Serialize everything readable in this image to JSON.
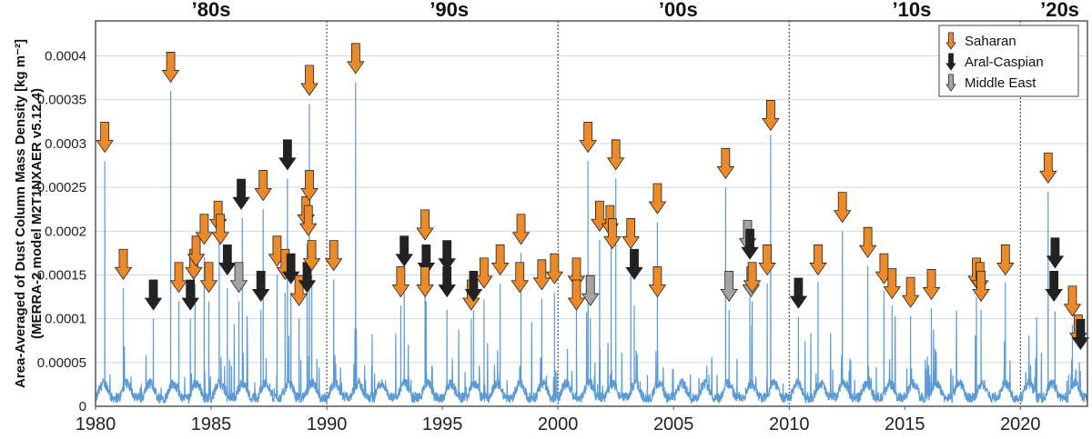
{
  "chart_data": {
    "type": "line",
    "ylabel": "Area-Averaged of Dust Column Mass Density [kg m⁻²]",
    "ylabel_line2": "(MERRA-2 model M2T1NXAER v5.12.4)",
    "xlim": [
      1980,
      2022.9
    ],
    "ylim": [
      0,
      0.00044
    ],
    "grid": "horizontal",
    "legend_placement": "top-right",
    "x_ticks": [
      "1980",
      "1985",
      "1990",
      "1995",
      "2000",
      "2005",
      "2010",
      "2015",
      "2020"
    ],
    "y_ticks": [
      "0",
      "0.00005",
      "0.0001",
      "0.00015",
      "0.0002",
      "0.00025",
      "0.0003",
      "0.00035",
      "0.0004"
    ],
    "decades": [
      {
        "label": "’80s",
        "year": 1985
      },
      {
        "label": "’90s",
        "year": 1995.3
      },
      {
        "label": "’00s",
        "year": 2005.2
      },
      {
        "label": "’10s",
        "year": 2015.3
      },
      {
        "label": "’20s",
        "year": 2021.7
      }
    ],
    "decade_dividers": [
      1990,
      2000,
      2010,
      2020
    ],
    "series_color": "#5b9bd5",
    "region_colors": {
      "Saharan": "#ec8a2a",
      "Aral-Caspian": "#222222",
      "Middle East": "#a3a3a3"
    },
    "legend": [
      {
        "label": "Saharan",
        "region": "Saharan"
      },
      {
        "label": "Aral-Caspian",
        "region": "Aral-Caspian"
      },
      {
        "label": "Middle East",
        "region": "Middle East"
      }
    ],
    "peaks": [
      [
        1980.4,
        0.00028
      ],
      [
        1981.2,
        0.000135
      ],
      [
        1982.5,
        0.0001
      ],
      [
        1983.25,
        0.00036
      ],
      [
        1983.6,
        0.00012
      ],
      [
        1984.1,
        0.0001
      ],
      [
        1984.3,
        0.00014
      ],
      [
        1984.7,
        0.00017
      ],
      [
        1984.9,
        0.00012
      ],
      [
        1985.35,
        0.00019
      ],
      [
        1985.7,
        0.000135
      ],
      [
        1986.2,
        0.00012
      ],
      [
        1986.35,
        0.000215
      ],
      [
        1987.15,
        0.00011
      ],
      [
        1987.25,
        0.000225
      ],
      [
        1987.85,
        0.00015
      ],
      [
        1988.2,
        0.00013
      ],
      [
        1988.3,
        0.00026
      ],
      [
        1988.45,
        0.00013
      ],
      [
        1988.8,
        0.0001
      ],
      [
        1989.15,
        0.000185
      ],
      [
        1989.25,
        0.000345
      ],
      [
        1989.35,
        0.00015
      ],
      [
        1990.3,
        0.000145
      ],
      [
        1991.25,
        0.00037
      ],
      [
        1993.2,
        0.000115
      ],
      [
        1993.35,
        0.00013
      ],
      [
        1994.25,
        0.00018
      ],
      [
        1994.3,
        0.00012
      ],
      [
        1995.2,
        0.00011
      ],
      [
        1996.25,
        0.0001
      ],
      [
        1996.35,
        0.00011
      ],
      [
        1996.8,
        0.000122
      ],
      [
        1997.5,
        0.00014
      ],
      [
        1998.4,
        0.000175
      ],
      [
        1999.3,
        0.000123
      ],
      [
        1999.85,
        0.00013
      ],
      [
        2000.8,
        0.00011
      ],
      [
        2001.3,
        0.00028
      ],
      [
        2001.4,
        0.0001
      ],
      [
        2001.8,
        0.00019
      ],
      [
        2002.3,
        0.000185
      ],
      [
        2002.5,
        0.00026
      ],
      [
        2003.15,
        0.00015
      ],
      [
        2003.3,
        0.000115
      ],
      [
        2004.3,
        0.00021
      ],
      [
        2007.25,
        0.00025
      ],
      [
        2007.4,
        0.00011
      ],
      [
        2008.3,
        0.000125
      ],
      [
        2008.4,
        0.00012
      ],
      [
        2009.05,
        0.00014
      ],
      [
        2009.2,
        0.00031
      ],
      [
        2010.4,
        0.000102
      ],
      [
        2011.25,
        0.000142
      ],
      [
        2012.3,
        0.0002
      ],
      [
        2013.4,
        0.00016
      ],
      [
        2014.1,
        0.000132
      ],
      [
        2014.45,
        0.000115
      ],
      [
        2015.25,
        0.000103
      ],
      [
        2016.15,
        0.000112
      ],
      [
        2018.1,
        0.000125
      ],
      [
        2018.3,
        0.00011
      ],
      [
        2019.35,
        0.000142
      ],
      [
        2021.2,
        0.000245
      ],
      [
        2021.5,
        0.000108
      ],
      [
        2022.25,
        9.3e-05
      ],
      [
        2022.55,
        5e-05
      ]
    ],
    "events": [
      {
        "year": 1980.4,
        "value": 0.00029,
        "region": "Saharan"
      },
      {
        "year": 1981.2,
        "value": 0.000145,
        "region": "Saharan"
      },
      {
        "year": 1982.5,
        "value": 0.00011,
        "region": "Aral-Caspian"
      },
      {
        "year": 1983.25,
        "value": 0.00037,
        "region": "Saharan"
      },
      {
        "year": 1983.6,
        "value": 0.00013,
        "region": "Saharan"
      },
      {
        "year": 1984.1,
        "value": 0.00011,
        "region": "Aral-Caspian"
      },
      {
        "year": 1984.25,
        "value": 0.000145,
        "region": "Saharan"
      },
      {
        "year": 1984.35,
        "value": 0.00016,
        "region": "Saharan"
      },
      {
        "year": 1984.7,
        "value": 0.000185,
        "region": "Saharan"
      },
      {
        "year": 1984.9,
        "value": 0.00013,
        "region": "Saharan"
      },
      {
        "year": 1985.3,
        "value": 0.0002,
        "region": "Saharan"
      },
      {
        "year": 1985.4,
        "value": 0.000185,
        "region": "Saharan"
      },
      {
        "year": 1985.7,
        "value": 0.00015,
        "region": "Aral-Caspian"
      },
      {
        "year": 1986.2,
        "value": 0.00013,
        "region": "Middle East"
      },
      {
        "year": 1986.3,
        "value": 0.000225,
        "region": "Aral-Caspian"
      },
      {
        "year": 1987.15,
        "value": 0.00012,
        "region": "Aral-Caspian"
      },
      {
        "year": 1987.25,
        "value": 0.000235,
        "region": "Saharan"
      },
      {
        "year": 1987.85,
        "value": 0.00016,
        "region": "Saharan"
      },
      {
        "year": 1988.2,
        "value": 0.000145,
        "region": "Saharan"
      },
      {
        "year": 1988.3,
        "value": 0.00027,
        "region": "Aral-Caspian"
      },
      {
        "year": 1988.45,
        "value": 0.00014,
        "region": "Aral-Caspian"
      },
      {
        "year": 1988.8,
        "value": 0.000115,
        "region": "Saharan"
      },
      {
        "year": 1989.15,
        "value": 0.00013,
        "region": "Aral-Caspian"
      },
      {
        "year": 1989.1,
        "value": 0.000205,
        "region": "Saharan"
      },
      {
        "year": 1989.2,
        "value": 0.000195,
        "region": "Saharan"
      },
      {
        "year": 1989.25,
        "value": 0.000235,
        "region": "Saharan"
      },
      {
        "year": 1989.25,
        "value": 0.000355,
        "region": "Saharan"
      },
      {
        "year": 1989.35,
        "value": 0.000155,
        "region": "Saharan"
      },
      {
        "year": 1990.3,
        "value": 0.000155,
        "region": "Saharan"
      },
      {
        "year": 1991.25,
        "value": 0.00038,
        "region": "Saharan"
      },
      {
        "year": 1993.2,
        "value": 0.000125,
        "region": "Saharan"
      },
      {
        "year": 1993.35,
        "value": 0.00016,
        "region": "Aral-Caspian"
      },
      {
        "year": 1994.25,
        "value": 0.00019,
        "region": "Saharan"
      },
      {
        "year": 1994.3,
        "value": 0.00015,
        "region": "Aral-Caspian"
      },
      {
        "year": 1994.25,
        "value": 0.000125,
        "region": "Saharan"
      },
      {
        "year": 1995.2,
        "value": 0.000155,
        "region": "Aral-Caspian"
      },
      {
        "year": 1995.2,
        "value": 0.000125,
        "region": "Aral-Caspian"
      },
      {
        "year": 1996.25,
        "value": 0.00011,
        "region": "Saharan"
      },
      {
        "year": 1996.35,
        "value": 0.00012,
        "region": "Aral-Caspian"
      },
      {
        "year": 1996.8,
        "value": 0.000135,
        "region": "Saharan"
      },
      {
        "year": 1997.5,
        "value": 0.00015,
        "region": "Saharan"
      },
      {
        "year": 1998.4,
        "value": 0.000185,
        "region": "Saharan"
      },
      {
        "year": 1998.35,
        "value": 0.00013,
        "region": "Saharan"
      },
      {
        "year": 1999.3,
        "value": 0.000133,
        "region": "Saharan"
      },
      {
        "year": 1999.85,
        "value": 0.00014,
        "region": "Saharan"
      },
      {
        "year": 2000.8,
        "value": 0.000135,
        "region": "Saharan"
      },
      {
        "year": 2000.8,
        "value": 0.00011,
        "region": "Saharan"
      },
      {
        "year": 2001.3,
        "value": 0.00029,
        "region": "Saharan"
      },
      {
        "year": 2001.4,
        "value": 0.000115,
        "region": "Middle East"
      },
      {
        "year": 2001.8,
        "value": 0.0002,
        "region": "Saharan"
      },
      {
        "year": 2002.25,
        "value": 0.000195,
        "region": "Saharan"
      },
      {
        "year": 2002.35,
        "value": 0.00018,
        "region": "Saharan"
      },
      {
        "year": 2002.5,
        "value": 0.00027,
        "region": "Saharan"
      },
      {
        "year": 2003.15,
        "value": 0.00018,
        "region": "Saharan"
      },
      {
        "year": 2003.3,
        "value": 0.000145,
        "region": "Aral-Caspian"
      },
      {
        "year": 2004.3,
        "value": 0.00022,
        "region": "Saharan"
      },
      {
        "year": 2004.3,
        "value": 0.000125,
        "region": "Saharan"
      },
      {
        "year": 2007.25,
        "value": 0.00026,
        "region": "Saharan"
      },
      {
        "year": 2007.4,
        "value": 0.00012,
        "region": "Middle East"
      },
      {
        "year": 2008.2,
        "value": 0.000178,
        "region": "Middle East"
      },
      {
        "year": 2008.3,
        "value": 0.000168,
        "region": "Aral-Caspian"
      },
      {
        "year": 2008.35,
        "value": 0.000125,
        "region": "Middle East"
      },
      {
        "year": 2008.4,
        "value": 0.00013,
        "region": "Saharan"
      },
      {
        "year": 2009.05,
        "value": 0.00015,
        "region": "Saharan"
      },
      {
        "year": 2009.2,
        "value": 0.000315,
        "region": "Saharan"
      },
      {
        "year": 2010.4,
        "value": 0.000112,
        "region": "Aral-Caspian"
      },
      {
        "year": 2011.25,
        "value": 0.00015,
        "region": "Saharan"
      },
      {
        "year": 2012.3,
        "value": 0.00021,
        "region": "Saharan"
      },
      {
        "year": 2013.4,
        "value": 0.00017,
        "region": "Saharan"
      },
      {
        "year": 2014.1,
        "value": 0.00014,
        "region": "Saharan"
      },
      {
        "year": 2014.45,
        "value": 0.000123,
        "region": "Saharan"
      },
      {
        "year": 2015.25,
        "value": 0.000113,
        "region": "Saharan"
      },
      {
        "year": 2016.15,
        "value": 0.000122,
        "region": "Saharan"
      },
      {
        "year": 2018.1,
        "value": 0.000135,
        "region": "Saharan"
      },
      {
        "year": 2018.25,
        "value": 0.00013,
        "region": "Saharan"
      },
      {
        "year": 2018.3,
        "value": 0.00012,
        "region": "Saharan"
      },
      {
        "year": 2019.35,
        "value": 0.00015,
        "region": "Saharan"
      },
      {
        "year": 2021.2,
        "value": 0.000255,
        "region": "Saharan"
      },
      {
        "year": 2021.5,
        "value": 0.000158,
        "region": "Aral-Caspian"
      },
      {
        "year": 2021.45,
        "value": 0.00012,
        "region": "Aral-Caspian"
      },
      {
        "year": 2022.25,
        "value": 0.000103,
        "region": "Saharan"
      },
      {
        "year": 2022.5,
        "value": 7e-05,
        "region": "Saharan"
      },
      {
        "year": 2022.6,
        "value": 6.5e-05,
        "region": "Aral-Caspian"
      }
    ]
  }
}
